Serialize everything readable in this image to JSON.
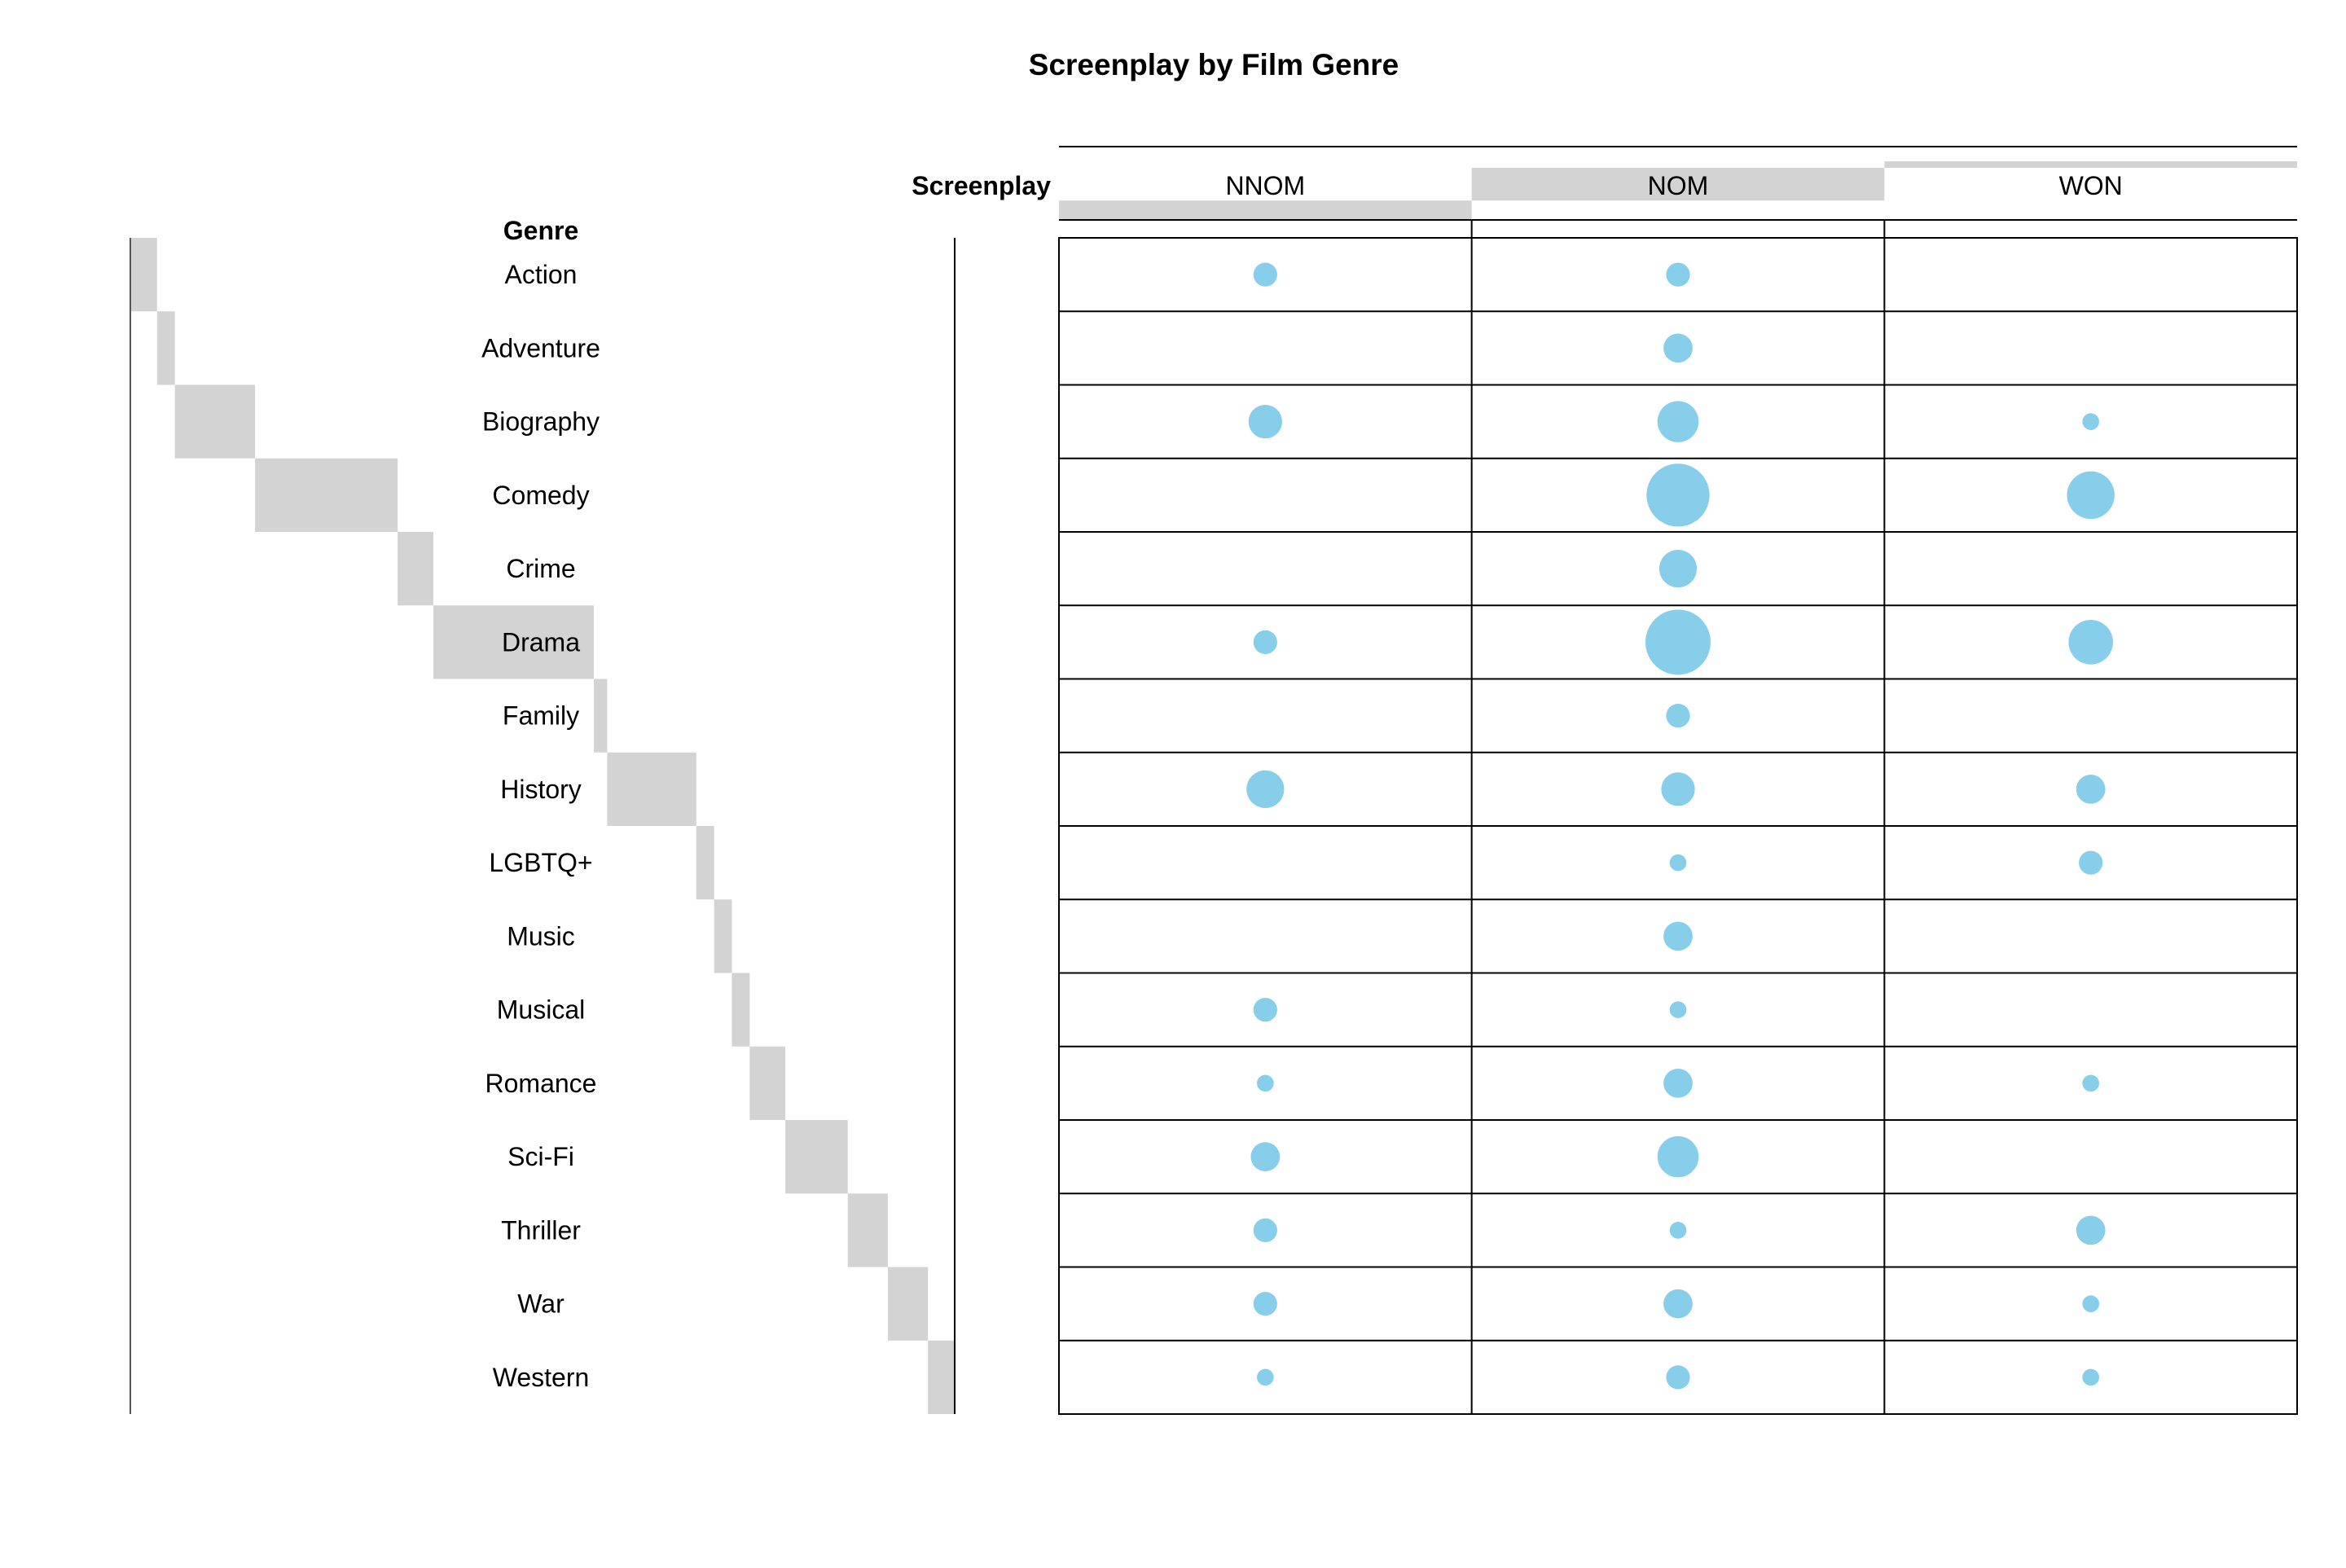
{
  "chart_data": {
    "type": "mosaic-bubble",
    "title": "Screenplay by Film Genre",
    "row_variable": "Genre",
    "column_variable": "Screenplay",
    "columns": [
      "NNOM",
      "NOM",
      "WON"
    ],
    "column_margin_shares": [
      0.0645,
      0.1087,
      0.0217
    ],
    "rows": [
      "Action",
      "Adventure",
      "Biography",
      "Comedy",
      "Crime",
      "Drama",
      "Family",
      "History",
      "LGBTQ+",
      "Music",
      "Musical",
      "Romance",
      "Sci-Fi",
      "Thriller",
      "War",
      "Western"
    ],
    "row_margin_shares": [
      0.0326,
      0.0217,
      0.0978,
      0.1739,
      0.0435,
      0.1957,
      0.0163,
      0.1087,
      0.0217,
      0.0217,
      0.0217,
      0.0435,
      0.0761,
      0.0489,
      0.0489,
      0.0326
    ],
    "cell_values": [
      [
        2,
        2,
        0
      ],
      [
        0,
        3,
        0
      ],
      [
        4,
        6,
        1
      ],
      [
        0,
        14,
        8
      ],
      [
        0,
        5,
        0
      ],
      [
        2,
        15,
        7
      ],
      [
        0,
        2,
        0
      ],
      [
        5,
        4,
        3
      ],
      [
        0,
        1,
        2
      ],
      [
        0,
        3,
        0
      ],
      [
        2,
        1,
        0
      ],
      [
        1,
        3,
        1
      ],
      [
        3,
        6,
        0
      ],
      [
        2,
        1,
        3
      ],
      [
        2,
        3,
        1
      ],
      [
        1,
        2,
        1
      ]
    ],
    "bubble_color": "#87ceeb",
    "margin_bar_color": "#d3d3d3",
    "grid": true
  }
}
